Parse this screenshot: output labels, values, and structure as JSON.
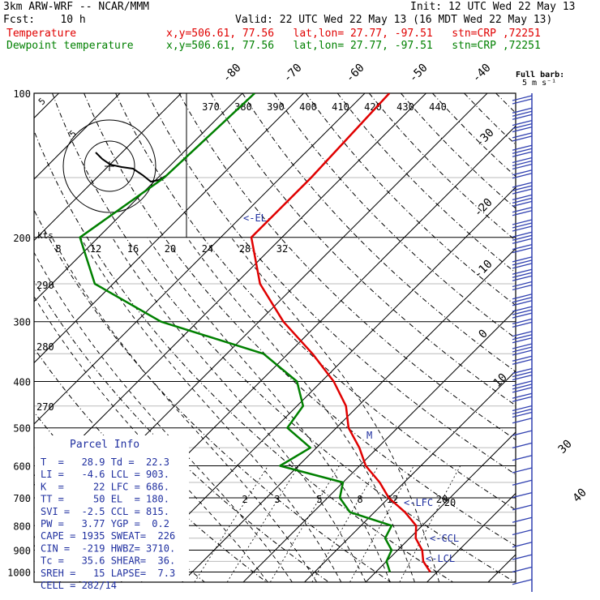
{
  "header": {
    "model": "3km ARW-WRF -- NCAR/MMM",
    "init": "Init: 12 UTC Wed 22 May 13",
    "fcst": "Fcst:    10 h",
    "valid": "Valid: 22 UTC Wed 22 May 13 (16 MDT Wed 22 May 13)",
    "temp_label": "Temperature",
    "dew_label": "Dewpoint temperature",
    "loc_info": "x,y=506.61, 77.56   lat,lon= 27.77, -97.51   stn=CRP ,72251"
  },
  "chart_data": {
    "type": "line",
    "pressure_levels": [
      "100",
      "200",
      "300",
      "400",
      "500",
      "600",
      "700",
      "800",
      "900",
      "1000"
    ],
    "isotherm_labels": [
      "-80",
      "-70",
      "-60",
      "-50",
      "-40",
      "-30",
      "-20",
      "-10",
      "0",
      "10",
      "20",
      "30",
      "40"
    ],
    "theta_labels": [
      "370",
      "380",
      "390",
      "400",
      "410",
      "420",
      "430",
      "440"
    ],
    "hodo_speed_labels": [
      "8",
      "12",
      "16",
      "20",
      "24",
      "28",
      "32"
    ],
    "theta_left_labels": [
      "290",
      "280",
      "270"
    ],
    "mixing_ratio_labels": [
      "2",
      "3",
      "5",
      "8",
      "12",
      "20"
    ],
    "series": [
      {
        "name": "Temperature",
        "color": "#e00000",
        "points": [
          [
            100,
            -56
          ],
          [
            150,
            -55
          ],
          [
            200,
            -55
          ],
          [
            250,
            -46
          ],
          [
            300,
            -36
          ],
          [
            350,
            -26
          ],
          [
            400,
            -18
          ],
          [
            450,
            -12
          ],
          [
            500,
            -8
          ],
          [
            550,
            -3
          ],
          [
            600,
            1
          ],
          [
            650,
            6
          ],
          [
            700,
            10
          ],
          [
            750,
            15
          ],
          [
            800,
            19
          ],
          [
            850,
            21
          ],
          [
            900,
            24
          ],
          [
            950,
            26
          ],
          [
            1000,
            28.9
          ]
        ]
      },
      {
        "name": "Dewpoint temperature",
        "color": "#008000",
        "points": [
          [
            100,
            -78
          ],
          [
            150,
            -79
          ],
          [
            200,
            -83
          ],
          [
            250,
            -73
          ],
          [
            300,
            -56
          ],
          [
            350,
            -34
          ],
          [
            400,
            -24
          ],
          [
            450,
            -19
          ],
          [
            500,
            -18
          ],
          [
            550,
            -11
          ],
          [
            600,
            -13
          ],
          [
            650,
            0
          ],
          [
            700,
            2
          ],
          [
            750,
            6
          ],
          [
            800,
            15
          ],
          [
            850,
            16
          ],
          [
            900,
            19
          ],
          [
            950,
            20
          ],
          [
            1000,
            22.3
          ]
        ]
      }
    ]
  },
  "annotations": {
    "el": "<-EL-",
    "lfc": "<-LFC",
    "ccl": "<-CCL",
    "lcl": "<-LCL",
    "hodo_mark": "M",
    "kts": "kts",
    "wind_title": "Full barb:",
    "wind_sub": "5 m s⁻¹",
    "hodo_ring": "5"
  },
  "parcel_info": {
    "title": "Parcel Info",
    "rows": [
      "T  =   28.9 Td =  22.3",
      "LI =   -4.6 LCL = 903.",
      "K  =     22 LFC = 686.",
      "TT =     50 EL  = 180.",
      "SVI =  -2.5 CCL = 815.",
      "PW =   3.77 YGP =  0.2",
      "CAPE = 1935 SWEAT=  226",
      "CIN =  -219 HWBZ= 3710.",
      "Tc =   35.6 SHEAR=  36.",
      "SREH =   15 LAPSE=  7.3",
      "CELL = 282/14"
    ]
  }
}
